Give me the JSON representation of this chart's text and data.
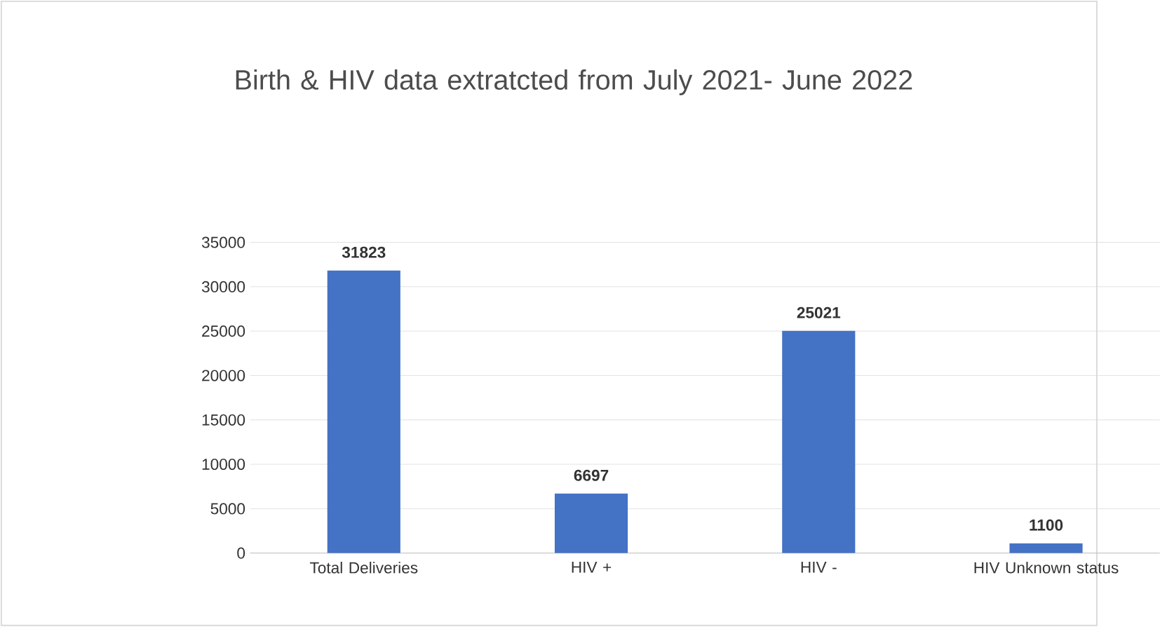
{
  "chart_data": {
    "type": "bar",
    "title": "Birth & HIV data extratcted from July 2021- June 2022",
    "categories": [
      "Total Deliveries",
      "HIV +",
      "HIV -",
      "HIV Unknown status"
    ],
    "values": [
      31823,
      6697,
      25021,
      1100
    ],
    "color": "#4472c4",
    "ylim": [
      0,
      35000
    ],
    "yticks": [
      0,
      5000,
      10000,
      15000,
      20000,
      25000,
      30000,
      35000
    ],
    "grid": "y",
    "data_labels": true
  }
}
